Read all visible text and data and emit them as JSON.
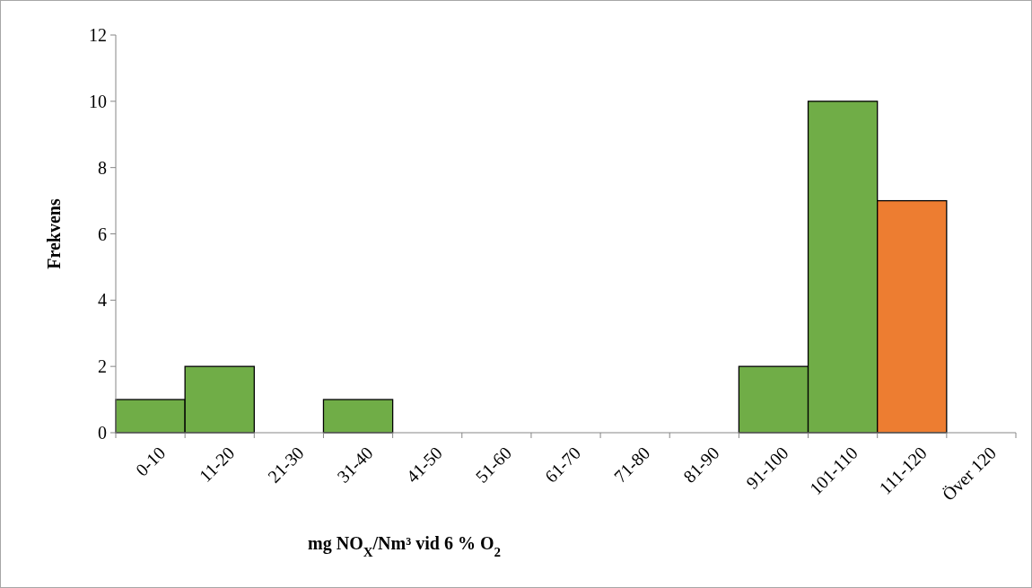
{
  "chart_data": {
    "type": "bar",
    "xlabel": "mg NO$_{X}$/Nm³ vid 6 % O$_{2}$",
    "ylabel": "Frekvens",
    "categories": [
      "0-10",
      "11-20",
      "21-30",
      "31-40",
      "41-50",
      "51-60",
      "61-70",
      "71-80",
      "81-90",
      "91-100",
      "101-110",
      "111-120",
      "Över 120"
    ],
    "values": [
      1,
      2,
      0,
      1,
      0,
      0,
      0,
      0,
      0,
      2,
      10,
      7,
      0
    ],
    "colors": [
      "#70ad47",
      "#70ad47",
      "#70ad47",
      "#70ad47",
      "#70ad47",
      "#70ad47",
      "#70ad47",
      "#70ad47",
      "#70ad47",
      "#70ad47",
      "#70ad47",
      "#ed7d31",
      "#70ad47"
    ],
    "ylim": [
      0,
      12
    ],
    "yticks": [
      0,
      2,
      4,
      6,
      8,
      10,
      12
    ],
    "grid": false
  }
}
